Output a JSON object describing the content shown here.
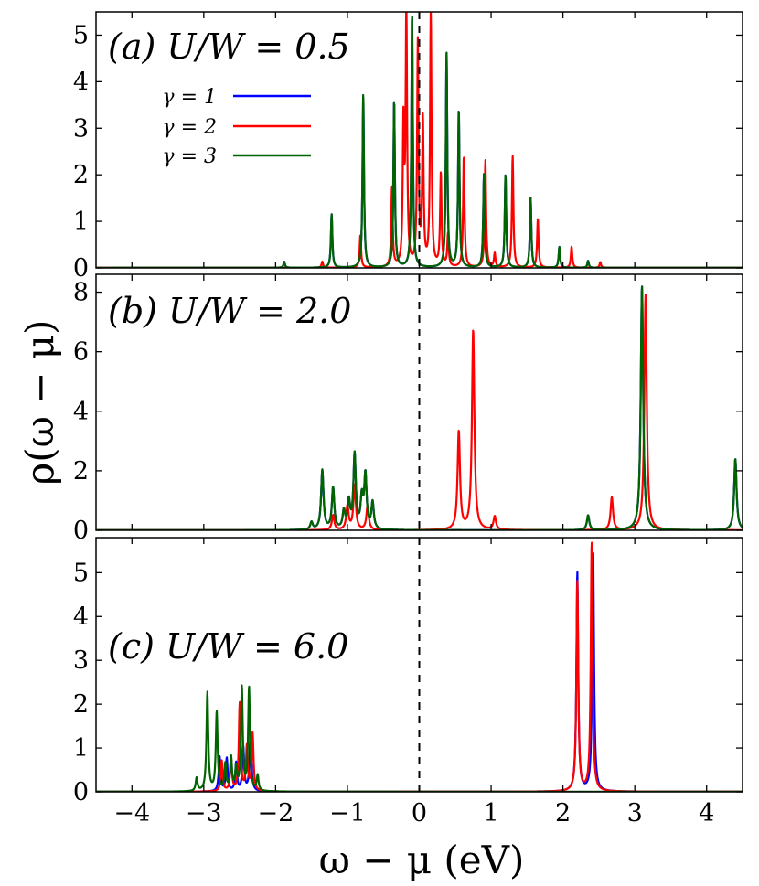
{
  "chart_data": {
    "type": "line",
    "xlabel": "ω − μ (eV)",
    "ylabel": "ρ(ω − μ)",
    "xlim": [
      -4.5,
      4.5
    ],
    "xticks": [
      -4,
      -3,
      -2,
      -1,
      0,
      1,
      2,
      3,
      4
    ],
    "xtick_labels": [
      "−4",
      "−3",
      "−2",
      "−1",
      "0",
      "1",
      "2",
      "3",
      "4"
    ],
    "vline_x": 0,
    "vline_style": "dashed",
    "legend": {
      "placement": "upper-left of panel (a)",
      "entries": [
        {
          "label": "γ = 1",
          "color": "#0000ff"
        },
        {
          "label": "γ = 2",
          "color": "#ff0000"
        },
        {
          "label": "γ = 3",
          "color": "#006400"
        }
      ]
    },
    "panels": [
      {
        "label": "(a) U/W = 0.5",
        "ylim": [
          0,
          5.5
        ],
        "yticks": [
          0,
          1,
          2,
          3,
          4,
          5
        ],
        "width": 0.012,
        "series": [
          {
            "name": "γ = 1",
            "color": "#0000ff",
            "peaks": [
              [
                -1.88,
                0.13
              ],
              [
                -1.22,
                1.15
              ],
              [
                -0.78,
                3.7
              ],
              [
                -0.35,
                3.6
              ],
              [
                -0.1,
                5.5
              ],
              [
                0.38,
                4.6
              ],
              [
                0.55,
                3.4
              ],
              [
                0.9,
                2.0
              ],
              [
                1.2,
                2.0
              ],
              [
                1.55,
                1.5
              ],
              [
                1.95,
                0.45
              ],
              [
                2.35,
                0.15
              ]
            ]
          },
          {
            "name": "γ = 2",
            "color": "#ff0000",
            "peaks": [
              [
                -1.35,
                0.13
              ],
              [
                -0.82,
                0.7
              ],
              [
                -0.38,
                1.7
              ],
              [
                -0.22,
                3.0
              ],
              [
                -0.18,
                5.5
              ],
              [
                -0.02,
                4.8
              ],
              [
                0.05,
                3.1
              ],
              [
                0.16,
                5.5
              ],
              [
                0.3,
                2.0
              ],
              [
                0.4,
                0.7
              ],
              [
                0.62,
                2.4
              ],
              [
                0.92,
                2.3
              ],
              [
                1.05,
                0.3
              ],
              [
                1.3,
                2.4
              ],
              [
                1.65,
                1.05
              ],
              [
                2.12,
                0.45
              ],
              [
                2.52,
                0.12
              ]
            ]
          },
          {
            "name": "γ = 3",
            "color": "#006400",
            "peaks": [
              [
                -1.88,
                0.13
              ],
              [
                -1.22,
                1.15
              ],
              [
                -0.78,
                3.75
              ],
              [
                -0.35,
                3.6
              ],
              [
                -0.1,
                5.5
              ],
              [
                0.38,
                4.6
              ],
              [
                0.55,
                3.4
              ],
              [
                0.9,
                2.0
              ],
              [
                1.2,
                2.0
              ],
              [
                1.55,
                1.5
              ],
              [
                1.95,
                0.45
              ],
              [
                2.35,
                0.15
              ]
            ]
          }
        ]
      },
      {
        "label": "(b) U/W = 2.0",
        "ylim": [
          0,
          8.6
        ],
        "yticks": [
          0,
          2,
          4,
          6,
          8
        ],
        "width": 0.02,
        "series": [
          {
            "name": "γ = 1",
            "color": "#0000ff",
            "peaks": [
              [
                -1.5,
                0.25
              ],
              [
                -1.35,
                2.0
              ],
              [
                -1.2,
                1.4
              ],
              [
                -1.05,
                0.6
              ],
              [
                -0.98,
                0.9
              ],
              [
                -0.9,
                2.5
              ],
              [
                -0.8,
                1.0
              ],
              [
                -0.75,
                1.8
              ],
              [
                -0.65,
                0.9
              ],
              [
                2.35,
                0.5
              ],
              [
                3.1,
                8.2
              ],
              [
                4.4,
                2.4
              ]
            ]
          },
          {
            "name": "γ = 2",
            "color": "#ff0000",
            "peaks": [
              [
                -1.2,
                0.5
              ],
              [
                -1.0,
                0.8
              ],
              [
                -0.9,
                1.5
              ],
              [
                -0.72,
                0.8
              ],
              [
                0.55,
                3.3
              ],
              [
                0.75,
                6.7
              ],
              [
                1.05,
                0.45
              ],
              [
                2.68,
                1.1
              ],
              [
                3.15,
                7.9
              ]
            ]
          },
          {
            "name": "γ = 3",
            "color": "#006400",
            "peaks": [
              [
                -1.5,
                0.25
              ],
              [
                -1.35,
                2.0
              ],
              [
                -1.2,
                1.4
              ],
              [
                -1.05,
                0.6
              ],
              [
                -0.98,
                0.9
              ],
              [
                -0.9,
                2.5
              ],
              [
                -0.8,
                1.0
              ],
              [
                -0.75,
                1.8
              ],
              [
                -0.65,
                0.9
              ],
              [
                2.35,
                0.5
              ],
              [
                3.1,
                8.2
              ],
              [
                4.4,
                2.4
              ]
            ]
          }
        ]
      },
      {
        "label": "(c) U/W = 6.0",
        "ylim": [
          0,
          5.8
        ],
        "yticks": [
          0,
          1,
          2,
          3,
          4,
          5
        ],
        "width": 0.015,
        "series": [
          {
            "name": "γ = 1",
            "color": "#0000ff",
            "peaks": [
              [
                -2.78,
                0.8
              ],
              [
                -2.68,
                0.75
              ],
              [
                -2.55,
                0.65
              ],
              [
                -2.45,
                1.0
              ],
              [
                -2.35,
                1.4
              ],
              [
                2.2,
                5.0
              ],
              [
                2.42,
                5.5
              ]
            ]
          },
          {
            "name": "γ = 2",
            "color": "#ff0000",
            "peaks": [
              [
                -2.75,
                0.7
              ],
              [
                -2.62,
                0.75
              ],
              [
                -2.5,
                2.0
              ],
              [
                -2.4,
                1.0
              ],
              [
                -2.32,
                1.3
              ],
              [
                2.2,
                4.8
              ],
              [
                2.4,
                5.7
              ]
            ]
          },
          {
            "name": "γ = 3",
            "color": "#006400",
            "peaks": [
              [
                -3.1,
                0.3
              ],
              [
                -2.95,
                2.25
              ],
              [
                -2.82,
                1.8
              ],
              [
                -2.7,
                0.6
              ],
              [
                -2.62,
                0.75
              ],
              [
                -2.55,
                0.5
              ],
              [
                -2.47,
                2.35
              ],
              [
                -2.37,
                2.35
              ],
              [
                -2.25,
                0.35
              ]
            ]
          }
        ]
      }
    ]
  }
}
